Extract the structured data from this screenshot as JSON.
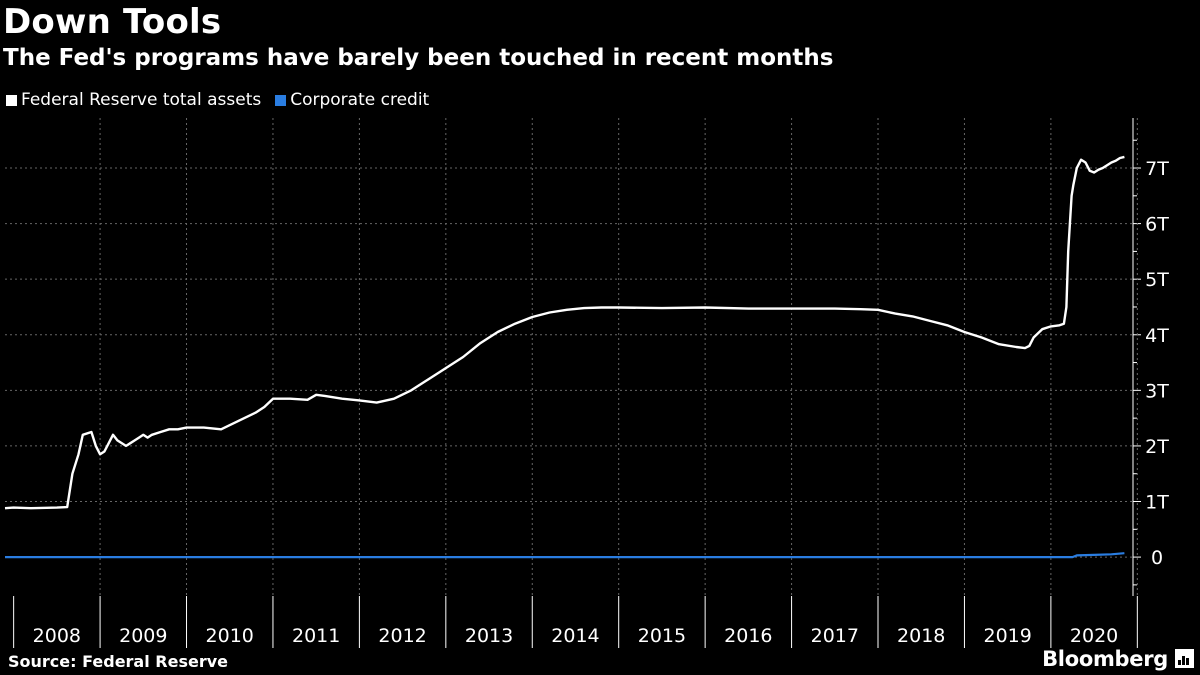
{
  "title": "Down Tools",
  "subtitle": "The Fed's programs have barely been touched in recent months",
  "source": "Source: Federal Reserve",
  "brand": "Bloomberg",
  "colors": {
    "background": "#000000",
    "assets": "#ffffff",
    "credit": "#2a7de1",
    "grid": "#666666"
  },
  "chart_data": {
    "type": "line",
    "legend_placement": "top-left",
    "grid": true,
    "xlim": [
      2007.9,
      2020.95
    ],
    "ylim": [
      -0.7,
      7.9
    ],
    "yticks": [
      0,
      1,
      2,
      3,
      4,
      5,
      6,
      7
    ],
    "ytick_labels": [
      "0",
      "1T",
      "2T",
      "3T",
      "4T",
      "5T",
      "6T",
      "7T"
    ],
    "xtick_labels": [
      "2008",
      "2009",
      "2010",
      "2011",
      "2012",
      "2013",
      "2014",
      "2015",
      "2016",
      "2017",
      "2018",
      "2019",
      "2020"
    ],
    "series": [
      {
        "name": "Federal Reserve total assets",
        "color": "#ffffff",
        "x": [
          2007.9,
          2008.0,
          2008.2,
          2008.5,
          2008.62,
          2008.68,
          2008.75,
          2008.8,
          2008.9,
          2008.95,
          2009.0,
          2009.05,
          2009.1,
          2009.15,
          2009.2,
          2009.3,
          2009.35,
          2009.4,
          2009.45,
          2009.5,
          2009.55,
          2009.6,
          2009.7,
          2009.8,
          2009.9,
          2010.0,
          2010.2,
          2010.4,
          2010.6,
          2010.8,
          2010.9,
          2011.0,
          2011.2,
          2011.4,
          2011.5,
          2011.6,
          2011.8,
          2012.0,
          2012.2,
          2012.4,
          2012.6,
          2012.8,
          2013.0,
          2013.2,
          2013.4,
          2013.6,
          2013.8,
          2014.0,
          2014.2,
          2014.4,
          2014.6,
          2014.8,
          2015.0,
          2015.5,
          2016.0,
          2016.5,
          2017.0,
          2017.5,
          2017.8,
          2018.0,
          2018.2,
          2018.4,
          2018.6,
          2018.8,
          2019.0,
          2019.2,
          2019.4,
          2019.6,
          2019.7,
          2019.75,
          2019.8,
          2019.9,
          2020.0,
          2020.1,
          2020.15,
          2020.18,
          2020.2,
          2020.22,
          2020.24,
          2020.26,
          2020.3,
          2020.35,
          2020.4,
          2020.45,
          2020.5,
          2020.55,
          2020.6,
          2020.65,
          2020.7,
          2020.75,
          2020.8,
          2020.85
        ],
        "values": [
          0.88,
          0.89,
          0.88,
          0.89,
          0.9,
          1.5,
          1.85,
          2.2,
          2.25,
          2.0,
          1.85,
          1.9,
          2.05,
          2.2,
          2.1,
          2.0,
          2.05,
          2.1,
          2.15,
          2.2,
          2.15,
          2.2,
          2.25,
          2.3,
          2.3,
          2.33,
          2.33,
          2.3,
          2.45,
          2.6,
          2.7,
          2.85,
          2.85,
          2.83,
          2.92,
          2.9,
          2.85,
          2.82,
          2.78,
          2.85,
          3.0,
          3.2,
          3.4,
          3.6,
          3.85,
          4.05,
          4.2,
          4.32,
          4.4,
          4.45,
          4.48,
          4.49,
          4.49,
          4.48,
          4.49,
          4.47,
          4.47,
          4.47,
          4.46,
          4.45,
          4.38,
          4.33,
          4.25,
          4.17,
          4.05,
          3.95,
          3.83,
          3.78,
          3.76,
          3.8,
          3.95,
          4.1,
          4.15,
          4.17,
          4.2,
          4.5,
          5.5,
          6.0,
          6.5,
          6.7,
          7.0,
          7.15,
          7.1,
          6.95,
          6.92,
          6.97,
          7.0,
          7.05,
          7.1,
          7.13,
          7.18,
          7.2
        ]
      },
      {
        "name": "Corporate credit",
        "color": "#2a7de1",
        "x": [
          2007.9,
          2020.25,
          2020.3,
          2020.5,
          2020.7,
          2020.85
        ],
        "values": [
          0.0,
          0.0,
          0.03,
          0.04,
          0.05,
          0.07
        ]
      }
    ]
  }
}
